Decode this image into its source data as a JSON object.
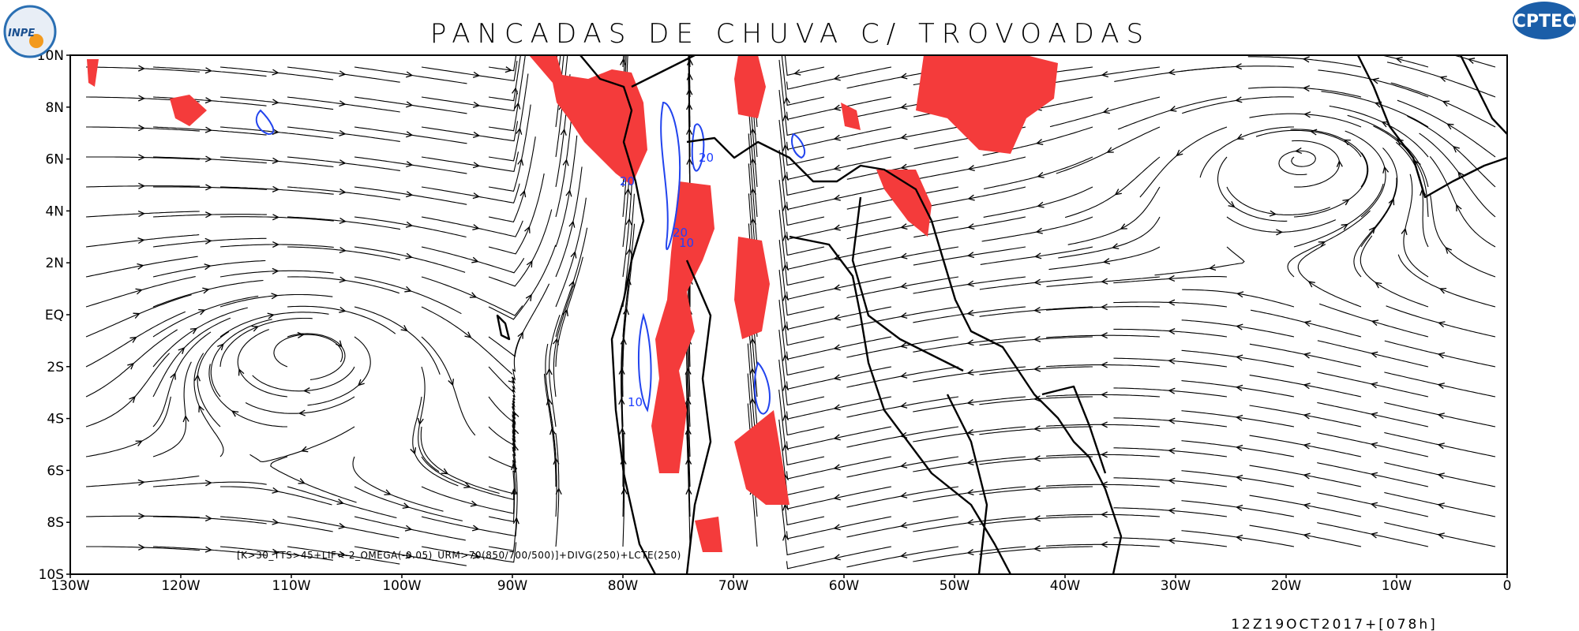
{
  "header": {
    "title": "PANCADAS DE CHUVA C/ TROVOADAS",
    "logo_left": "INPE",
    "logo_right": "CPTEC"
  },
  "map": {
    "lat_labels": [
      "10N",
      "8N",
      "6N",
      "4N",
      "2N",
      "EQ",
      "2S",
      "4S",
      "6S",
      "8S",
      "10S"
    ],
    "lon_labels": [
      "130W",
      "120W",
      "110W",
      "100W",
      "90W",
      "80W",
      "70W",
      "60W",
      "50W",
      "40W",
      "30W",
      "20W",
      "10W",
      "0"
    ],
    "contour_labels": [
      "20",
      "20",
      "20",
      "10",
      "10"
    ],
    "legend_text": "[K>30_TTS>45+LIF<-2_OMEGA(-0.05)_URM>70(850/700/500)]+DIVG(250)+LCTE(250)"
  },
  "footer": {
    "timestamp": "12Z19OCT2017+[078h]"
  }
}
